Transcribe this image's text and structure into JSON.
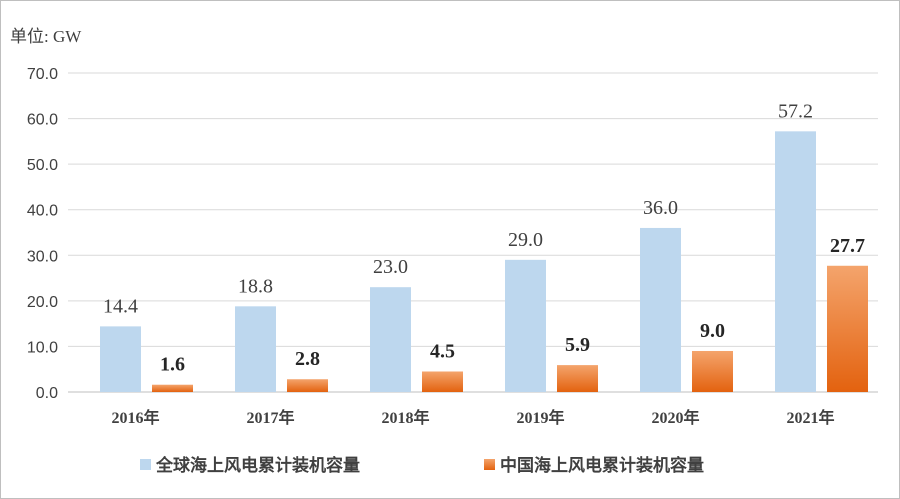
{
  "unit_label": "单位: GW",
  "colors": {
    "global": "#bdd7ee",
    "china_top": "#f4a46c",
    "china_bottom": "#e3620f",
    "grid": "#d9d9d9",
    "axis": "#bfbfbf"
  },
  "chart_data": {
    "type": "bar",
    "categories": [
      "2016年",
      "2017年",
      "2018年",
      "2019年",
      "2020年",
      "2021年"
    ],
    "series": [
      {
        "name": "全球海上风电累计装机容量",
        "values": [
          14.4,
          18.8,
          23.0,
          29.0,
          36.0,
          57.2
        ],
        "labels": [
          "14.4",
          "18.8",
          "23.0",
          "29.0",
          "36.0",
          "57.2"
        ]
      },
      {
        "name": "中国海上风电累计装机容量",
        "values": [
          1.6,
          2.8,
          4.5,
          5.9,
          9.0,
          27.7
        ],
        "labels": [
          "1.6",
          "2.8",
          "4.5",
          "5.9",
          "9.0",
          "27.7"
        ]
      }
    ],
    "yticks": [
      "0.0",
      "10.0",
      "20.0",
      "30.0",
      "40.0",
      "50.0",
      "60.0",
      "70.0"
    ],
    "ylim": [
      0,
      70
    ],
    "grid": true,
    "legend_position": "bottom"
  }
}
